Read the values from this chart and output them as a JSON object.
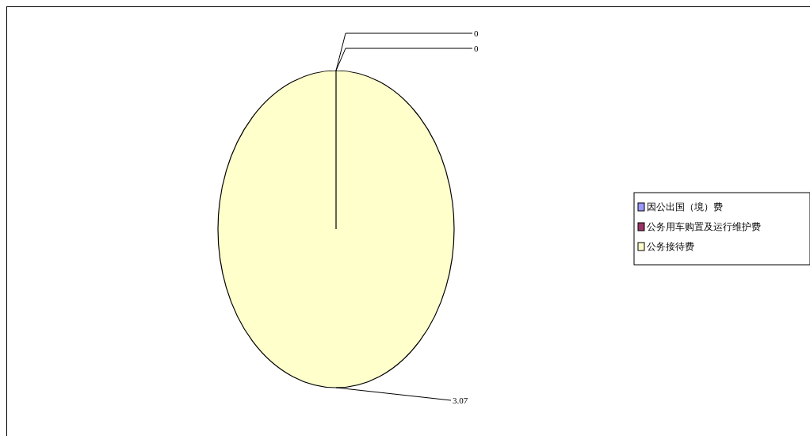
{
  "chart_data": {
    "type": "pie",
    "categories": [
      "因公出国（境）费",
      "公务用车购置及运行维护费",
      "公务接待费"
    ],
    "values": [
      0,
      0,
      3.07
    ],
    "colors": [
      "#9999ff",
      "#993366",
      "#ffffcc"
    ],
    "value_labels": [
      "0",
      "0",
      "3.07"
    ],
    "legend": "right"
  }
}
